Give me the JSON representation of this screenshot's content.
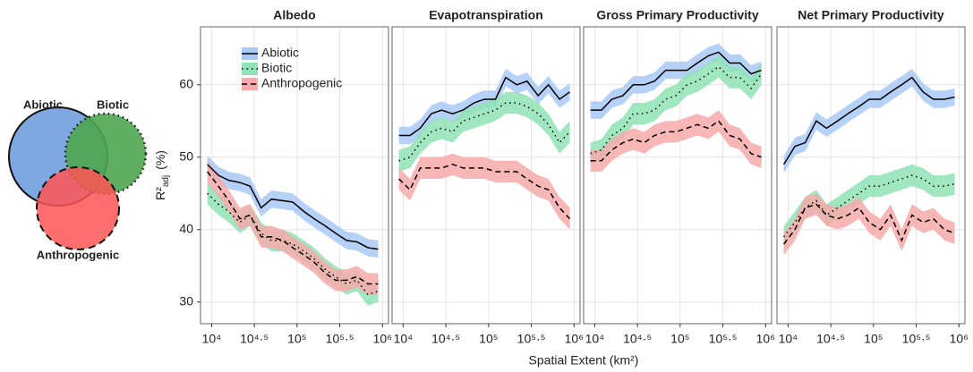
{
  "chart_data": [
    {
      "type": "line",
      "title": "Albedo",
      "y_label": {
        "main": "R²",
        "sub": "adj",
        "unit": "(%)"
      },
      "legend": "top-left",
      "grid": true,
      "x": [
        3.95,
        4.08,
        4.2,
        4.33,
        4.45,
        4.58,
        4.7,
        4.83,
        4.95,
        5.08,
        5.2,
        5.33,
        5.45,
        5.58,
        5.7,
        5.83,
        5.95
      ],
      "xlim": [
        3.87,
        6.07
      ],
      "xticks": [
        {
          "value": 4,
          "label": "10⁴"
        },
        {
          "value": 4.5,
          "label": "10⁴·⁵"
        },
        {
          "value": 5,
          "label": "10⁵"
        },
        {
          "value": 5.5,
          "label": "10⁵·⁵"
        },
        {
          "value": 6,
          "label": "10⁶"
        }
      ],
      "ylim": [
        27,
        68
      ],
      "yticks": [
        30,
        40,
        50,
        60
      ],
      "series": [
        {
          "name": "Abiotic",
          "color": "#a9c9f7",
          "dash": "solid",
          "band": 1.2,
          "values": [
            49,
            47.5,
            46.8,
            46.5,
            46,
            43,
            44.2,
            44,
            43.8,
            42.5,
            41.5,
            40.5,
            39.5,
            38.5,
            38.3,
            37.5,
            37.3
          ]
        },
        {
          "name": "Biotic",
          "color": "#8fe3b5",
          "dash": "dotted",
          "band": 1.5,
          "values": [
            45,
            43.5,
            42.5,
            41,
            42,
            39.5,
            38.5,
            38.5,
            38,
            37,
            36,
            34.5,
            33.5,
            32.5,
            33,
            31,
            31.5
          ]
        },
        {
          "name": "Anthropogenic",
          "color": "#f7aaaa",
          "dash": "dashed",
          "band": 1.5,
          "values": [
            48,
            46,
            44,
            41.5,
            42,
            39,
            39,
            38.5,
            37.5,
            36.5,
            35.5,
            34,
            33,
            33,
            33.5,
            32.5,
            32.5
          ]
        }
      ]
    },
    {
      "type": "line",
      "title": "Evapotranspiration",
      "grid": true,
      "x": [
        3.95,
        4.08,
        4.2,
        4.33,
        4.45,
        4.58,
        4.7,
        4.83,
        4.95,
        5.08,
        5.2,
        5.33,
        5.45,
        5.58,
        5.7,
        5.83,
        5.95
      ],
      "xlim": [
        3.87,
        6.07
      ],
      "xticks": [
        {
          "value": 4,
          "label": "10⁴"
        },
        {
          "value": 4.5,
          "label": "10⁴·⁵"
        },
        {
          "value": 5,
          "label": "10⁵"
        },
        {
          "value": 5.5,
          "label": "10⁵·⁵"
        },
        {
          "value": 6,
          "label": "10⁶"
        }
      ],
      "ylim": [
        27,
        68
      ],
      "yticks": [
        30,
        40,
        50,
        60
      ],
      "series": [
        {
          "name": "Abiotic",
          "color": "#a9c9f7",
          "dash": "solid",
          "band": 1.2,
          "values": [
            53,
            53,
            54,
            56,
            56.5,
            56,
            56.5,
            57.5,
            58,
            58,
            61,
            60,
            60.5,
            58.5,
            60,
            58,
            59
          ]
        },
        {
          "name": "Biotic",
          "color": "#8fe3b5",
          "dash": "dotted",
          "band": 1.5,
          "values": [
            49.5,
            50,
            52,
            53.5,
            54,
            53.5,
            55,
            55.5,
            56,
            56.5,
            57.5,
            57.5,
            57,
            56,
            54.5,
            52,
            53.5
          ]
        },
        {
          "name": "Anthropogenic",
          "color": "#f7aaaa",
          "dash": "dashed",
          "band": 1.5,
          "values": [
            47,
            45.5,
            48.5,
            48.5,
            48.5,
            49,
            48.5,
            48.5,
            48.5,
            48,
            48,
            48,
            47,
            46,
            45.5,
            43,
            41.5
          ]
        }
      ]
    },
    {
      "type": "line",
      "title": "Gross Primary Productivity",
      "grid": true,
      "x": [
        3.95,
        4.08,
        4.2,
        4.33,
        4.45,
        4.58,
        4.7,
        4.83,
        4.95,
        5.08,
        5.2,
        5.33,
        5.45,
        5.58,
        5.7,
        5.83,
        5.95
      ],
      "xlim": [
        3.87,
        6.07
      ],
      "xticks": [
        {
          "value": 4,
          "label": "10⁴"
        },
        {
          "value": 4.5,
          "label": "10⁴·⁵"
        },
        {
          "value": 5,
          "label": "10⁵"
        },
        {
          "value": 5.5,
          "label": "10⁵·⁵"
        },
        {
          "value": 6,
          "label": "10⁶"
        }
      ],
      "ylim": [
        27,
        68
      ],
      "yticks": [
        30,
        40,
        50,
        60
      ],
      "series": [
        {
          "name": "Abiotic",
          "color": "#a9c9f7",
          "dash": "solid",
          "band": 1.2,
          "values": [
            56.5,
            56.5,
            58,
            58.5,
            60,
            60,
            60.5,
            62,
            62,
            62,
            63,
            64,
            64.5,
            63,
            63,
            61.5,
            62
          ]
        },
        {
          "name": "Biotic",
          "color": "#8fe3b5",
          "dash": "dotted",
          "band": 1.5,
          "values": [
            50.5,
            51,
            53,
            54,
            56,
            56,
            56.5,
            58,
            58.5,
            60,
            60.5,
            61.5,
            62.5,
            61,
            61,
            59.5,
            61.5
          ]
        },
        {
          "name": "Anthropogenic",
          "color": "#f7aaaa",
          "dash": "dashed",
          "band": 1.5,
          "values": [
            49.5,
            49.5,
            51,
            52,
            52.5,
            52,
            53,
            53.5,
            53.5,
            54,
            54.5,
            54,
            55,
            53,
            52.5,
            50.5,
            50
          ]
        }
      ]
    },
    {
      "type": "line",
      "title": "Net Primary Productivity",
      "grid": true,
      "x": [
        3.95,
        4.08,
        4.2,
        4.33,
        4.45,
        4.58,
        4.7,
        4.83,
        4.95,
        5.08,
        5.2,
        5.33,
        5.45,
        5.58,
        5.7,
        5.83,
        5.95
      ],
      "xlim": [
        3.87,
        6.07
      ],
      "xticks": [
        {
          "value": 4,
          "label": "10⁴"
        },
        {
          "value": 4.5,
          "label": "10⁴·⁵"
        },
        {
          "value": 5,
          "label": "10⁵"
        },
        {
          "value": 5.5,
          "label": "10⁵·⁵"
        },
        {
          "value": 6,
          "label": "10⁶"
        }
      ],
      "ylim": [
        27,
        68
      ],
      "yticks": [
        30,
        40,
        50,
        60
      ],
      "series": [
        {
          "name": "Abiotic",
          "color": "#a9c9f7",
          "dash": "solid",
          "band": 1.2,
          "values": [
            49,
            51.5,
            52,
            55,
            54,
            55,
            56,
            57,
            58,
            58,
            59,
            60,
            61,
            59,
            58,
            58,
            58.3
          ]
        },
        {
          "name": "Biotic",
          "color": "#8fe3b5",
          "dash": "dotted",
          "band": 1.5,
          "values": [
            39,
            41,
            43,
            44,
            42,
            43,
            44,
            45,
            46,
            46,
            46.5,
            47,
            47.5,
            47,
            46,
            46,
            46.3
          ]
        },
        {
          "name": "Anthropogenic",
          "color": "#f7aaaa",
          "dash": "dashed",
          "band": 1.5,
          "values": [
            38,
            40,
            43,
            43.5,
            42,
            41.5,
            42,
            43,
            41,
            40,
            42,
            38.5,
            42,
            41,
            41.5,
            40,
            39.5
          ]
        }
      ]
    }
  ],
  "x_label": "Spatial Extent (km²)",
  "venn": {
    "labels": [
      "Abiotic",
      "Biotic",
      "Anthropogenic"
    ]
  }
}
